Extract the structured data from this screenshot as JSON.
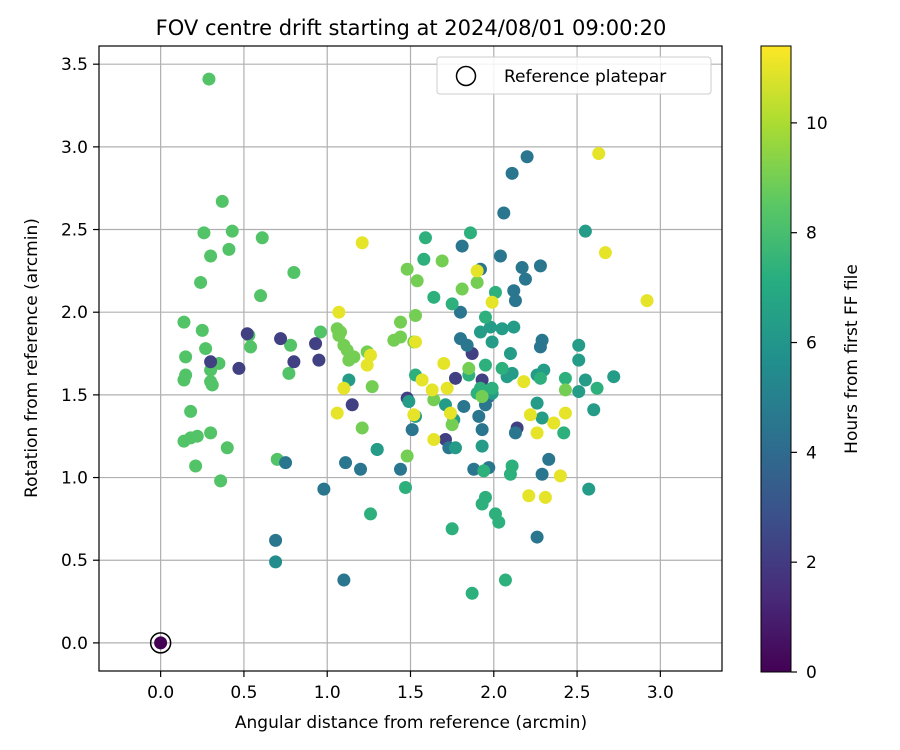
{
  "chart_data": {
    "type": "scatter",
    "title": "FOV centre drift starting at 2024/08/01 09:00:20",
    "xlabel": "Angular distance from reference (arcmin)",
    "ylabel": "Rotation from reference (arcmin)",
    "xlim": [
      -0.37,
      3.37
    ],
    "ylim": [
      -0.17,
      3.61
    ],
    "xticks": [
      "0.0",
      "0.5",
      "1.0",
      "1.5",
      "2.0",
      "2.5",
      "3.0"
    ],
    "yticks": [
      "0.0",
      "0.5",
      "1.0",
      "1.5",
      "2.0",
      "2.5",
      "3.0",
      "3.5"
    ],
    "grid": true,
    "legend": {
      "position": "top-right",
      "entries": [
        "Reference platepar"
      ]
    },
    "reference_point": {
      "x": 0.0,
      "y": 0.0
    },
    "colorbar": {
      "label": "Hours from first FF file",
      "range": [
        0,
        11.4
      ],
      "ticks": [
        "0",
        "2",
        "4",
        "6",
        "8",
        "10"
      ],
      "colormap": "viridis"
    },
    "points": [
      {
        "x": 0.29,
        "y": 3.41,
        "h": 8.3
      },
      {
        "x": 0.37,
        "y": 2.67,
        "h": 8.3
      },
      {
        "x": 0.26,
        "y": 2.48,
        "h": 8.3
      },
      {
        "x": 0.43,
        "y": 2.49,
        "h": 8.3
      },
      {
        "x": 0.3,
        "y": 2.34,
        "h": 8.3
      },
      {
        "x": 0.41,
        "y": 2.38,
        "h": 8.3
      },
      {
        "x": 0.61,
        "y": 2.45,
        "h": 8.3
      },
      {
        "x": 0.24,
        "y": 2.18,
        "h": 8.3
      },
      {
        "x": 0.8,
        "y": 2.24,
        "h": 8.3
      },
      {
        "x": 0.6,
        "y": 2.1,
        "h": 8.3
      },
      {
        "x": 0.14,
        "y": 1.94,
        "h": 8.3
      },
      {
        "x": 0.25,
        "y": 1.89,
        "h": 8.3
      },
      {
        "x": 0.53,
        "y": 1.86,
        "h": 8.3
      },
      {
        "x": 0.54,
        "y": 1.79,
        "h": 8.3
      },
      {
        "x": 0.27,
        "y": 1.78,
        "h": 8.3
      },
      {
        "x": 0.15,
        "y": 1.73,
        "h": 8.3
      },
      {
        "x": 0.35,
        "y": 1.69,
        "h": 8.3
      },
      {
        "x": 0.3,
        "y": 1.65,
        "h": 8.3
      },
      {
        "x": 0.15,
        "y": 1.62,
        "h": 8.3
      },
      {
        "x": 0.14,
        "y": 1.59,
        "h": 8.3
      },
      {
        "x": 0.3,
        "y": 1.58,
        "h": 8.3
      },
      {
        "x": 0.31,
        "y": 1.56,
        "h": 8.3
      },
      {
        "x": 0.18,
        "y": 1.4,
        "h": 8.3
      },
      {
        "x": 0.3,
        "y": 1.27,
        "h": 8.3
      },
      {
        "x": 0.14,
        "y": 1.22,
        "h": 8.3
      },
      {
        "x": 0.18,
        "y": 1.24,
        "h": 8.3
      },
      {
        "x": 0.22,
        "y": 1.25,
        "h": 8.3
      },
      {
        "x": 0.4,
        "y": 1.18,
        "h": 8.3
      },
      {
        "x": 0.21,
        "y": 1.07,
        "h": 8.3
      },
      {
        "x": 0.36,
        "y": 0.98,
        "h": 8.3
      },
      {
        "x": 0.7,
        "y": 1.11,
        "h": 8.3
      },
      {
        "x": 0.78,
        "y": 1.8,
        "h": 8.3
      },
      {
        "x": 0.77,
        "y": 1.63,
        "h": 8.3
      },
      {
        "x": 0.96,
        "y": 1.88,
        "h": 8.3
      },
      {
        "x": 0.52,
        "y": 1.87,
        "h": 2.2
      },
      {
        "x": 0.72,
        "y": 1.84,
        "h": 2.2
      },
      {
        "x": 0.3,
        "y": 1.7,
        "h": 2.2
      },
      {
        "x": 0.47,
        "y": 1.66,
        "h": 2.2
      },
      {
        "x": 0.8,
        "y": 1.7,
        "h": 2.2
      },
      {
        "x": 0.93,
        "y": 1.81,
        "h": 2.2
      },
      {
        "x": 0.95,
        "y": 1.71,
        "h": 2.2
      },
      {
        "x": 1.15,
        "y": 1.44,
        "h": 2.2
      },
      {
        "x": 1.87,
        "y": 1.75,
        "h": 2.2
      },
      {
        "x": 1.77,
        "y": 1.6,
        "h": 2.2
      },
      {
        "x": 1.48,
        "y": 1.48,
        "h": 2.2
      },
      {
        "x": 1.71,
        "y": 1.23,
        "h": 2.2
      },
      {
        "x": 1.93,
        "y": 1.59,
        "h": 2.2
      },
      {
        "x": 2.14,
        "y": 1.3,
        "h": 2.2
      },
      {
        "x": 0.69,
        "y": 0.62,
        "h": 4.5
      },
      {
        "x": 0.69,
        "y": 0.49,
        "h": 5.5
      },
      {
        "x": 0.75,
        "y": 1.09,
        "h": 4.5
      },
      {
        "x": 0.98,
        "y": 0.93,
        "h": 4.5
      },
      {
        "x": 1.11,
        "y": 1.09,
        "h": 4.5
      },
      {
        "x": 1.2,
        "y": 1.05,
        "h": 4.5
      },
      {
        "x": 1.3,
        "y": 1.17,
        "h": 4.5
      },
      {
        "x": 1.44,
        "y": 1.05,
        "h": 4.5
      },
      {
        "x": 1.51,
        "y": 1.29,
        "h": 4.5
      },
      {
        "x": 1.73,
        "y": 1.18,
        "h": 4.5
      },
      {
        "x": 1.88,
        "y": 1.05,
        "h": 4.5
      },
      {
        "x": 1.97,
        "y": 1.06,
        "h": 4.5
      },
      {
        "x": 1.93,
        "y": 1.29,
        "h": 4.5
      },
      {
        "x": 1.95,
        "y": 1.44,
        "h": 4.5
      },
      {
        "x": 2.13,
        "y": 1.27,
        "h": 4.5
      },
      {
        "x": 2.29,
        "y": 1.02,
        "h": 4.5
      },
      {
        "x": 2.33,
        "y": 1.11,
        "h": 4.5
      },
      {
        "x": 2.26,
        "y": 0.64,
        "h": 4.5
      },
      {
        "x": 1.1,
        "y": 0.38,
        "h": 4.5
      },
      {
        "x": 2.11,
        "y": 2.84,
        "h": 4.5
      },
      {
        "x": 2.2,
        "y": 2.94,
        "h": 4.5
      },
      {
        "x": 2.06,
        "y": 2.6,
        "h": 4.5
      },
      {
        "x": 2.04,
        "y": 2.34,
        "h": 4.5
      },
      {
        "x": 1.81,
        "y": 2.4,
        "h": 4.5
      },
      {
        "x": 1.92,
        "y": 2.26,
        "h": 4.5
      },
      {
        "x": 2.17,
        "y": 2.27,
        "h": 4.5
      },
      {
        "x": 2.28,
        "y": 2.28,
        "h": 4.5
      },
      {
        "x": 2.19,
        "y": 2.2,
        "h": 4.5
      },
      {
        "x": 2.12,
        "y": 2.13,
        "h": 4.5
      },
      {
        "x": 2.13,
        "y": 2.07,
        "h": 4.5
      },
      {
        "x": 1.8,
        "y": 2.0,
        "h": 4.5
      },
      {
        "x": 1.8,
        "y": 1.84,
        "h": 4.5
      },
      {
        "x": 1.84,
        "y": 1.8,
        "h": 4.5
      },
      {
        "x": 2.29,
        "y": 1.83,
        "h": 4.5
      },
      {
        "x": 2.28,
        "y": 1.79,
        "h": 4.5
      },
      {
        "x": 1.82,
        "y": 1.43,
        "h": 4.5
      },
      {
        "x": 1.97,
        "y": 1.49,
        "h": 4.5
      },
      {
        "x": 1.91,
        "y": 1.37,
        "h": 4.5
      },
      {
        "x": 1.49,
        "y": 1.46,
        "h": 6.3
      },
      {
        "x": 1.53,
        "y": 1.37,
        "h": 6.3
      },
      {
        "x": 1.71,
        "y": 1.44,
        "h": 6.3
      },
      {
        "x": 1.76,
        "y": 1.35,
        "h": 6.3
      },
      {
        "x": 1.98,
        "y": 1.91,
        "h": 6.3
      },
      {
        "x": 1.92,
        "y": 1.88,
        "h": 6.3
      },
      {
        "x": 1.99,
        "y": 1.82,
        "h": 6.3
      },
      {
        "x": 2.05,
        "y": 1.9,
        "h": 6.3
      },
      {
        "x": 2.1,
        "y": 1.75,
        "h": 6.3
      },
      {
        "x": 2.12,
        "y": 1.91,
        "h": 6.3
      },
      {
        "x": 2.26,
        "y": 1.62,
        "h": 6.3
      },
      {
        "x": 2.3,
        "y": 1.65,
        "h": 6.3
      },
      {
        "x": 2.29,
        "y": 1.36,
        "h": 6.3
      },
      {
        "x": 2.26,
        "y": 1.45,
        "h": 6.3
      },
      {
        "x": 2.51,
        "y": 1.8,
        "h": 6.3
      },
      {
        "x": 2.51,
        "y": 1.71,
        "h": 6.3
      },
      {
        "x": 2.55,
        "y": 1.59,
        "h": 6.3
      },
      {
        "x": 2.51,
        "y": 1.52,
        "h": 6.3
      },
      {
        "x": 2.6,
        "y": 1.41,
        "h": 6.3
      },
      {
        "x": 2.57,
        "y": 0.93,
        "h": 6.3
      },
      {
        "x": 2.55,
        "y": 2.49,
        "h": 6.3
      },
      {
        "x": 1.93,
        "y": 1.19,
        "h": 6.3
      },
      {
        "x": 1.77,
        "y": 1.18,
        "h": 6.3
      },
      {
        "x": 1.13,
        "y": 1.59,
        "h": 6.3
      },
      {
        "x": 1.3,
        "y": 1.17,
        "h": 6.3
      },
      {
        "x": 1.99,
        "y": 1.51,
        "h": 6.3
      },
      {
        "x": 2.08,
        "y": 1.61,
        "h": 6.3
      },
      {
        "x": 2.11,
        "y": 1.63,
        "h": 6.3
      },
      {
        "x": 2.72,
        "y": 1.61,
        "h": 6.3
      },
      {
        "x": 1.26,
        "y": 0.78,
        "h": 7.3
      },
      {
        "x": 1.47,
        "y": 0.94,
        "h": 7.3
      },
      {
        "x": 1.75,
        "y": 0.69,
        "h": 7.3
      },
      {
        "x": 1.87,
        "y": 0.3,
        "h": 7.3
      },
      {
        "x": 2.07,
        "y": 0.38,
        "h": 7.3
      },
      {
        "x": 2.01,
        "y": 0.78,
        "h": 7.3
      },
      {
        "x": 2.03,
        "y": 0.73,
        "h": 7.3
      },
      {
        "x": 1.93,
        "y": 0.84,
        "h": 7.3
      },
      {
        "x": 1.95,
        "y": 0.88,
        "h": 7.3
      },
      {
        "x": 1.94,
        "y": 1.04,
        "h": 7.3
      },
      {
        "x": 2.11,
        "y": 1.07,
        "h": 7.3
      },
      {
        "x": 2.1,
        "y": 1.02,
        "h": 7.3
      },
      {
        "x": 1.58,
        "y": 2.32,
        "h": 7.3
      },
      {
        "x": 1.59,
        "y": 2.45,
        "h": 7.3
      },
      {
        "x": 1.86,
        "y": 2.48,
        "h": 7.3
      },
      {
        "x": 1.64,
        "y": 2.09,
        "h": 7.3
      },
      {
        "x": 1.75,
        "y": 2.05,
        "h": 7.3
      },
      {
        "x": 1.95,
        "y": 1.97,
        "h": 7.3
      },
      {
        "x": 2.01,
        "y": 2.12,
        "h": 7.3
      },
      {
        "x": 1.92,
        "y": 1.54,
        "h": 7.3
      },
      {
        "x": 1.9,
        "y": 1.51,
        "h": 7.3
      },
      {
        "x": 2.05,
        "y": 1.66,
        "h": 7.3
      },
      {
        "x": 2.28,
        "y": 1.6,
        "h": 7.3
      },
      {
        "x": 2.43,
        "y": 1.6,
        "h": 7.3
      },
      {
        "x": 2.42,
        "y": 1.27,
        "h": 7.3
      },
      {
        "x": 2.62,
        "y": 1.54,
        "h": 7.3
      },
      {
        "x": 1.95,
        "y": 1.68,
        "h": 7.3
      },
      {
        "x": 1.53,
        "y": 1.62,
        "h": 7.3
      },
      {
        "x": 1.99,
        "y": 1.54,
        "h": 7.3
      },
      {
        "x": 1.85,
        "y": 1.62,
        "h": 7.3
      },
      {
        "x": 1.06,
        "y": 1.9,
        "h": 9.0
      },
      {
        "x": 1.07,
        "y": 1.86,
        "h": 9.0
      },
      {
        "x": 1.08,
        "y": 1.88,
        "h": 9.0
      },
      {
        "x": 1.1,
        "y": 1.8,
        "h": 9.0
      },
      {
        "x": 1.12,
        "y": 1.77,
        "h": 9.0
      },
      {
        "x": 1.16,
        "y": 1.73,
        "h": 9.0
      },
      {
        "x": 1.13,
        "y": 1.71,
        "h": 9.0
      },
      {
        "x": 1.24,
        "y": 1.76,
        "h": 9.0
      },
      {
        "x": 1.21,
        "y": 1.3,
        "h": 9.0
      },
      {
        "x": 1.27,
        "y": 1.55,
        "h": 9.0
      },
      {
        "x": 1.4,
        "y": 1.83,
        "h": 9.0
      },
      {
        "x": 1.44,
        "y": 1.85,
        "h": 9.0
      },
      {
        "x": 1.44,
        "y": 1.94,
        "h": 9.0
      },
      {
        "x": 1.48,
        "y": 1.13,
        "h": 9.0
      },
      {
        "x": 1.52,
        "y": 1.82,
        "h": 9.0
      },
      {
        "x": 1.53,
        "y": 1.98,
        "h": 9.0
      },
      {
        "x": 1.48,
        "y": 2.26,
        "h": 9.0
      },
      {
        "x": 1.54,
        "y": 2.19,
        "h": 9.0
      },
      {
        "x": 1.64,
        "y": 1.47,
        "h": 9.0
      },
      {
        "x": 1.75,
        "y": 1.32,
        "h": 9.0
      },
      {
        "x": 1.81,
        "y": 2.14,
        "h": 9.0
      },
      {
        "x": 1.85,
        "y": 1.66,
        "h": 9.0
      },
      {
        "x": 1.9,
        "y": 2.18,
        "h": 9.0
      },
      {
        "x": 1.93,
        "y": 1.49,
        "h": 9.0
      },
      {
        "x": 2.43,
        "y": 1.53,
        "h": 9.0
      },
      {
        "x": 1.69,
        "y": 2.31,
        "h": 9.0
      },
      {
        "x": 1.21,
        "y": 2.42,
        "h": 11.0
      },
      {
        "x": 1.07,
        "y": 2.0,
        "h": 11.0
      },
      {
        "x": 1.06,
        "y": 1.39,
        "h": 11.0
      },
      {
        "x": 1.1,
        "y": 1.54,
        "h": 11.0
      },
      {
        "x": 1.26,
        "y": 1.74,
        "h": 11.0
      },
      {
        "x": 1.24,
        "y": 1.68,
        "h": 11.0
      },
      {
        "x": 1.52,
        "y": 1.38,
        "h": 11.0
      },
      {
        "x": 1.53,
        "y": 1.82,
        "h": 11.0
      },
      {
        "x": 1.57,
        "y": 1.59,
        "h": 11.0
      },
      {
        "x": 1.63,
        "y": 1.53,
        "h": 11.0
      },
      {
        "x": 1.64,
        "y": 1.23,
        "h": 11.0
      },
      {
        "x": 1.7,
        "y": 1.69,
        "h": 11.0
      },
      {
        "x": 1.72,
        "y": 1.54,
        "h": 11.0
      },
      {
        "x": 1.74,
        "y": 1.39,
        "h": 11.0
      },
      {
        "x": 1.9,
        "y": 2.25,
        "h": 11.0
      },
      {
        "x": 1.99,
        "y": 2.06,
        "h": 11.0
      },
      {
        "x": 2.18,
        "y": 1.58,
        "h": 11.0
      },
      {
        "x": 2.21,
        "y": 0.89,
        "h": 11.0
      },
      {
        "x": 2.22,
        "y": 1.38,
        "h": 11.0
      },
      {
        "x": 2.26,
        "y": 1.27,
        "h": 11.0
      },
      {
        "x": 2.31,
        "y": 0.88,
        "h": 11.0
      },
      {
        "x": 2.36,
        "y": 1.33,
        "h": 11.0
      },
      {
        "x": 2.4,
        "y": 1.01,
        "h": 11.0
      },
      {
        "x": 2.43,
        "y": 1.39,
        "h": 11.0
      },
      {
        "x": 2.63,
        "y": 2.96,
        "h": 11.0
      },
      {
        "x": 2.67,
        "y": 2.36,
        "h": 11.0
      },
      {
        "x": 2.92,
        "y": 2.07,
        "h": 11.0
      }
    ]
  }
}
